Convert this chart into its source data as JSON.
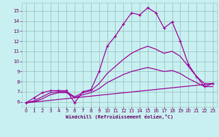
{
  "bg_color": "#c8f0f0",
  "grid_color": "#a0c8c8",
  "line_color": "#990099",
  "xlabel": "Windchill (Refroidissement éolien,°C)",
  "xlabel_color": "#660066",
  "tick_color": "#660066",
  "xlim": [
    -0.5,
    23.5
  ],
  "ylim": [
    5.5,
    15.8
  ],
  "yticks": [
    6,
    7,
    8,
    9,
    10,
    11,
    12,
    13,
    14,
    15
  ],
  "xticks": [
    0,
    1,
    2,
    3,
    4,
    5,
    6,
    7,
    8,
    9,
    10,
    11,
    12,
    13,
    14,
    15,
    16,
    17,
    18,
    19,
    20,
    21,
    22,
    23
  ],
  "lines": [
    {
      "x": [
        0,
        1,
        2,
        3,
        4,
        5,
        6,
        7,
        8,
        9,
        10,
        11,
        12,
        13,
        14,
        15,
        16,
        17,
        18,
        19,
        20,
        21,
        22,
        23
      ],
      "y": [
        5.9,
        6.4,
        6.9,
        7.1,
        7.1,
        7.1,
        5.9,
        7.0,
        7.2,
        9.0,
        11.5,
        12.5,
        13.7,
        14.8,
        14.6,
        15.3,
        14.8,
        13.3,
        13.9,
        12.0,
        9.7,
        8.5,
        7.5,
        7.8
      ],
      "marker": "+"
    },
    {
      "x": [
        0,
        1,
        2,
        3,
        4,
        5,
        6,
        7,
        8,
        9,
        10,
        11,
        12,
        13,
        14,
        15,
        16,
        17,
        18,
        19,
        20,
        21,
        22,
        23
      ],
      "y": [
        5.9,
        6.1,
        6.5,
        6.9,
        7.0,
        7.0,
        6.5,
        6.9,
        7.1,
        7.8,
        8.8,
        9.5,
        10.2,
        10.8,
        11.2,
        11.5,
        11.2,
        10.8,
        11.0,
        10.5,
        9.5,
        8.5,
        7.8,
        7.8
      ],
      "marker": null
    },
    {
      "x": [
        0,
        1,
        2,
        3,
        4,
        5,
        6,
        7,
        8,
        9,
        10,
        11,
        12,
        13,
        14,
        15,
        16,
        17,
        18,
        19,
        20,
        21,
        22,
        23
      ],
      "y": [
        5.9,
        6.0,
        6.3,
        6.7,
        6.9,
        6.9,
        6.4,
        6.7,
        6.9,
        7.3,
        7.9,
        8.3,
        8.7,
        9.0,
        9.2,
        9.4,
        9.2,
        9.0,
        9.1,
        8.8,
        8.3,
        7.9,
        7.5,
        7.5
      ],
      "marker": null
    },
    {
      "x": [
        0,
        23
      ],
      "y": [
        5.9,
        7.8
      ],
      "marker": null
    }
  ]
}
